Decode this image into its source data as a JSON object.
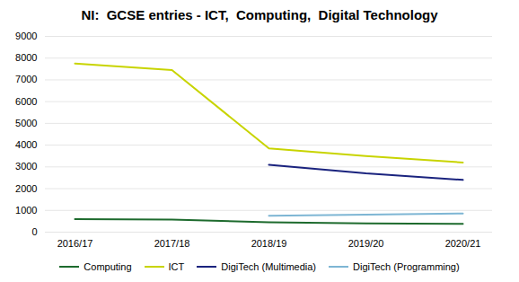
{
  "chart_data": {
    "type": "line",
    "title": "NI:  GCSE entries - ICT,  Computing,  Digital Technology",
    "categories": [
      "2016/17",
      "2017/18",
      "2018/19",
      "2019/20",
      "2020/21"
    ],
    "series": [
      {
        "name": "Computing",
        "color": "#1e6b2e",
        "values": [
          600,
          580,
          450,
          400,
          380
        ]
      },
      {
        "name": "ICT",
        "color": "#c8d400",
        "values": [
          7750,
          7450,
          3850,
          3500,
          3200
        ]
      },
      {
        "name": "DigiTech (Multimedia)",
        "color": "#1a237e",
        "values": [
          null,
          null,
          3100,
          2700,
          2400
        ]
      },
      {
        "name": "DigiTech (Programming)",
        "color": "#7eb6d4",
        "values": [
          null,
          null,
          750,
          800,
          860
        ]
      }
    ],
    "ylim": [
      0,
      9000
    ],
    "yticks": [
      0,
      1000,
      2000,
      3000,
      4000,
      5000,
      6000,
      7000,
      8000,
      9000
    ],
    "grid": true,
    "legend": "bottom"
  }
}
